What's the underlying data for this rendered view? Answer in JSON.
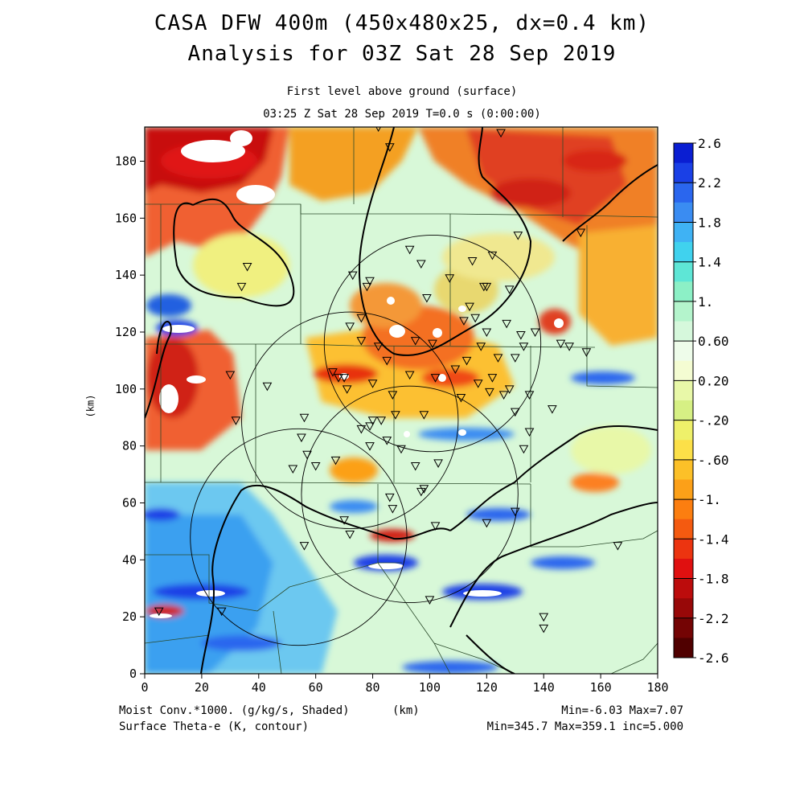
{
  "title": {
    "line1": "CASA DFW 400m (450x480x25, dx=0.4 km)",
    "line2": "Analysis for 03Z Sat 28 Sep 2019"
  },
  "subtitle": {
    "line1": "First level above ground (surface)",
    "line2": "03:25 Z Sat 28 Sep 2019    T=0.0 s (0:00:00)"
  },
  "axes": {
    "x_unit": "(km)",
    "y_unit": "(km)",
    "x_range": [
      0,
      180
    ],
    "y_range": [
      0,
      192
    ],
    "x_ticks": [
      "0",
      "20",
      "40",
      "60",
      "80",
      "100",
      "120",
      "140",
      "160",
      "180"
    ],
    "y_ticks": [
      "0",
      "20",
      "40",
      "60",
      "80",
      "100",
      "120",
      "140",
      "160",
      "180"
    ]
  },
  "colorbar": {
    "labels": [
      "2.6",
      "2.2",
      "1.8",
      "1.4",
      "1.",
      "0.60",
      "0.20",
      "-.20",
      "-.60",
      "-1.",
      "-1.4",
      "-1.8",
      "-2.2",
      "-2.6"
    ],
    "colors": [
      "#0a1ed2",
      "#1a40e6",
      "#2a66ee",
      "#3a8cf2",
      "#3fb2f4",
      "#40d2ee",
      "#5ee6d6",
      "#8cf0c6",
      "#b4f4cc",
      "#d6f8dc",
      "#eefcea",
      "#f4fcd2",
      "#e8f8a8",
      "#d6f084",
      "#eef06a",
      "#fce048",
      "#fcc028",
      "#fca018",
      "#fc7e10",
      "#f45a10",
      "#ec3410",
      "#e01010",
      "#bc0c0c",
      "#980808",
      "#740404",
      "#500000"
    ]
  },
  "footer": {
    "left1": "Moist Conv.*1000. (g/kg/s, Shaded)",
    "left2": "Surface Theta-e (K, contour)",
    "right1": "Min=-6.03 Max=7.07",
    "right2": "Min=345.7 Max=359.1 inc=5.000"
  },
  "radars": [
    {
      "x": 101,
      "y": 116,
      "r": 38
    },
    {
      "x": 72,
      "y": 89,
      "r": 38
    },
    {
      "x": 93,
      "y": 63,
      "r": 38
    },
    {
      "x": 54,
      "y": 48,
      "r": 38
    }
  ]
}
